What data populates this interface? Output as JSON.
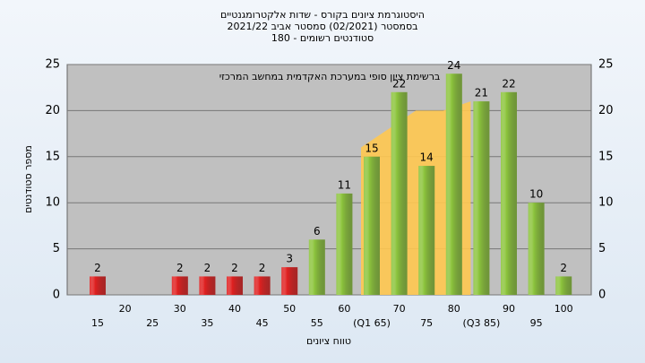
{
  "chart_data": {
    "type": "bar",
    "title": [
      "היסטוגרמת ציונים בקורס - שדות אלקטרומגנטיים",
      "בסמסטר (02/2021) סמסטר אביב 2021/22",
      "סטודנטים רשומים - 180"
    ],
    "annotation": "ברשימת ציון סופי במערכת האקדמית במחשב המרכזי",
    "x_label": "טווח ציונים",
    "y_label": "מספר סטודנטים",
    "categories": [
      "15",
      "20",
      "25",
      "30",
      "35",
      "40",
      "45",
      "50",
      "55",
      "60",
      "(Q1 65)",
      "70",
      "75",
      "80",
      "(Q3 85)",
      "90",
      "95",
      "100"
    ],
    "values": [
      2,
      null,
      null,
      2,
      2,
      2,
      2,
      3,
      6,
      11,
      15,
      22,
      14,
      24,
      21,
      22,
      10,
      2
    ],
    "colors": [
      "#e02020",
      null,
      null,
      "#e02020",
      "#e02020",
      "#e02020",
      "#e02020",
      "#e02020",
      "#8cc43c",
      "#8cc43c",
      "#8cc43c",
      "#8cc43c",
      "#8cc43c",
      "#8cc43c",
      "#8cc43c",
      "#8cc43c",
      "#8cc43c",
      "#8cc43c"
    ],
    "area": {
      "color": "#ffc850",
      "values": [
        null,
        null,
        null,
        null,
        null,
        null,
        null,
        null,
        null,
        null,
        16,
        18,
        20,
        20,
        21,
        null,
        null,
        null
      ]
    },
    "ylim": [
      0,
      25
    ],
    "yticks": [
      0,
      5,
      10,
      15,
      20,
      25
    ],
    "grid": true
  }
}
